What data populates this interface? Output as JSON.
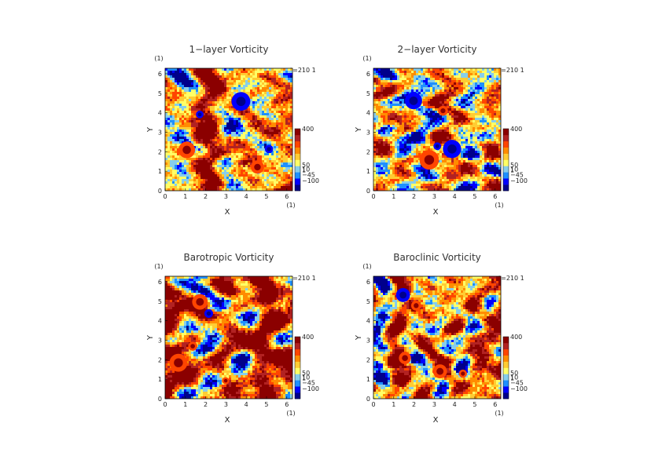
{
  "colormap": [
    "#00008b",
    "#0000ff",
    "#1e90ff",
    "#87ceeb",
    "#ffff66",
    "#ffcc33",
    "#ff8c00",
    "#ff4500",
    "#b22222",
    "#8b0000"
  ],
  "chart_data": [
    {
      "type": "heatmap",
      "title": "1−layer Vorticity",
      "xlabel": "X",
      "ylabel": "Y",
      "x_unit": "(1)",
      "y_unit": "(1)",
      "time_label": "t=210 1",
      "xlim": [
        0,
        6.28
      ],
      "ylim": [
        0,
        6.28
      ],
      "x_ticks": [
        "0",
        "1",
        "2",
        "3",
        "4",
        "5",
        "6"
      ],
      "y_ticks": [
        "0",
        "1",
        "2",
        "3",
        "4",
        "5",
        "6"
      ],
      "colorbar_labels": [
        "400",
        "50",
        "10",
        "1",
        "−45",
        "−100"
      ],
      "colorbar_values": [
        400,
        50,
        10,
        1,
        -45,
        -100
      ]
    },
    {
      "type": "heatmap",
      "title": "2−layer Vorticity",
      "xlabel": "X",
      "ylabel": "Y",
      "x_unit": "(1)",
      "y_unit": "(1)",
      "time_label": "t=210 1",
      "xlim": [
        0,
        6.28
      ],
      "ylim": [
        0,
        6.28
      ],
      "x_ticks": [
        "0",
        "1",
        "2",
        "3",
        "4",
        "5",
        "6"
      ],
      "y_ticks": [
        "0",
        "1",
        "2",
        "3",
        "4",
        "5",
        "6"
      ],
      "colorbar_labels": [
        "400",
        "50",
        "10",
        "1",
        "−45",
        "−100"
      ],
      "colorbar_values": [
        400,
        50,
        10,
        1,
        -45,
        -100
      ]
    },
    {
      "type": "heatmap",
      "title": "Barotropic Vorticity",
      "xlabel": "X",
      "ylabel": "Y",
      "x_unit": "(1)",
      "y_unit": "(1)",
      "time_label": "t=210 1",
      "xlim": [
        0,
        6.28
      ],
      "ylim": [
        0,
        6.28
      ],
      "x_ticks": [
        "0",
        "1",
        "2",
        "3",
        "4",
        "5",
        "6"
      ],
      "y_ticks": [
        "0",
        "1",
        "2",
        "3",
        "4",
        "5",
        "6"
      ],
      "colorbar_labels": [
        "400",
        "50",
        "10",
        "1",
        "−45",
        "−100"
      ],
      "colorbar_values": [
        400,
        50,
        10,
        1,
        -45,
        -100
      ]
    },
    {
      "type": "heatmap",
      "title": "Baroclinic Vorticity",
      "xlabel": "X",
      "ylabel": "Y",
      "x_unit": "(1)",
      "y_unit": "(1)",
      "time_label": "t=210 1",
      "xlim": [
        0,
        6.28
      ],
      "ylim": [
        0,
        6.28
      ],
      "x_ticks": [
        "0",
        "1",
        "2",
        "3",
        "4",
        "5",
        "6"
      ],
      "y_ticks": [
        "0",
        "1",
        "2",
        "3",
        "4",
        "5",
        "6"
      ],
      "colorbar_labels": [
        "400",
        "50",
        "10",
        "1",
        "−45",
        "−100"
      ],
      "colorbar_values": [
        400,
        50,
        10,
        1,
        -45,
        -100
      ]
    }
  ]
}
